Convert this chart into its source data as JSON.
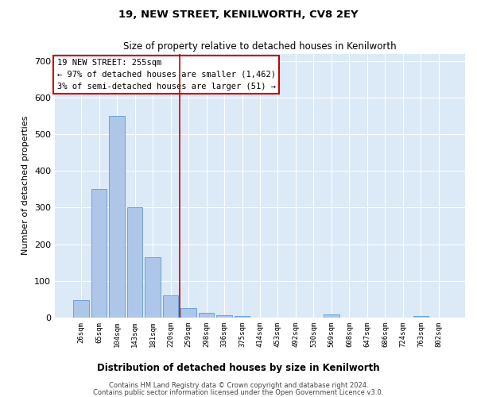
{
  "title1": "19, NEW STREET, KENILWORTH, CV8 2EY",
  "title2": "Size of property relative to detached houses in Kenilworth",
  "xlabel": "Distribution of detached houses by size in Kenilworth",
  "ylabel": "Number of detached properties",
  "categories": [
    "26sqm",
    "65sqm",
    "104sqm",
    "143sqm",
    "181sqm",
    "220sqm",
    "259sqm",
    "298sqm",
    "336sqm",
    "375sqm",
    "414sqm",
    "453sqm",
    "492sqm",
    "530sqm",
    "569sqm",
    "608sqm",
    "647sqm",
    "686sqm",
    "724sqm",
    "763sqm",
    "802sqm"
  ],
  "values": [
    47,
    350,
    550,
    300,
    165,
    60,
    25,
    13,
    7,
    5,
    0,
    0,
    0,
    0,
    8,
    0,
    0,
    0,
    0,
    5,
    0
  ],
  "bar_color": "#aec6e8",
  "bar_edge_color": "#5b9bd5",
  "background_color": "#dce9f7",
  "figure_bg": "#ffffff",
  "vline_x": 5.5,
  "vline_color": "#cc0000",
  "annotation_text": "19 NEW STREET: 255sqm\n← 97% of detached houses are smaller (1,462)\n3% of semi-detached houses are larger (51) →",
  "annotation_box_color": "#ffffff",
  "annotation_box_edgecolor": "#cc0000",
  "ylim": [
    0,
    720
  ],
  "yticks": [
    0,
    100,
    200,
    300,
    400,
    500,
    600,
    700
  ],
  "footer1": "Contains HM Land Registry data © Crown copyright and database right 2024.",
  "footer2": "Contains public sector information licensed under the Open Government Licence v3.0."
}
